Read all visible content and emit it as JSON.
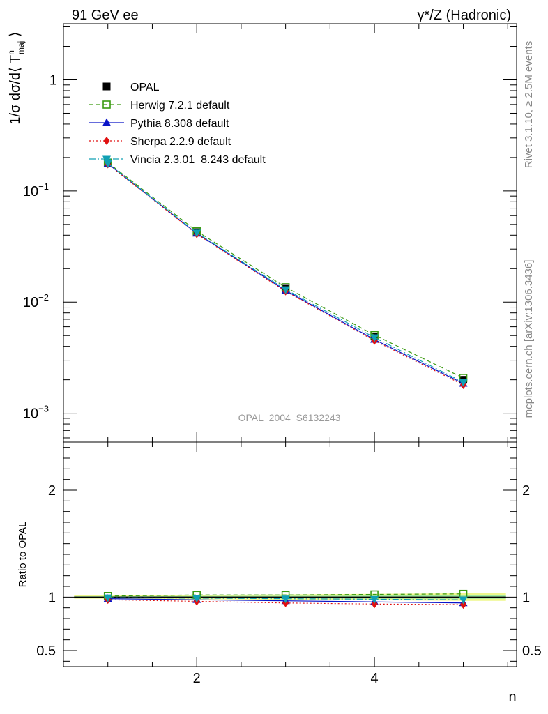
{
  "header": {
    "left_label": "91 GeV ee",
    "right_label": "γ*/Z (Hadronic)"
  },
  "side_text": {
    "rivet": "Rivet 3.1.10, ≥ 2.5M events",
    "mcplots": "mcplots.cern.ch [arXiv:1306.3436]"
  },
  "watermark": "OPAL_2004_S6132243",
  "main_ylabel": "1/σ dσ/d⟨ T^n_maj ⟩",
  "ratio_ylabel": "Ratio to OPAL",
  "xlabel": "n",
  "colors": {
    "OPAL": "#000000",
    "Herwig": "#3a9a10",
    "Pythia": "#0a14c8",
    "Sherpa": "#e01010",
    "Vincia": "#10a0b4",
    "band_outer": "#eef78c",
    "band_inner": "#9fe6a0"
  },
  "chart_data": [
    {
      "type": "line",
      "panel": "main",
      "yscale": "log",
      "xlim": [
        0.5,
        5.6
      ],
      "ylim": [
        0.00055,
        3.2
      ],
      "x_ticks": [
        2,
        4
      ],
      "y_ticks": [
        "10^-3",
        "10^-2",
        "10^-1",
        "1"
      ],
      "x": [
        1,
        2,
        3,
        4,
        5
      ],
      "series": [
        {
          "name": "OPAL",
          "marker": "filled-square",
          "values": [
            0.178,
            0.0425,
            0.0132,
            0.0049,
            0.002
          ]
        },
        {
          "name": "Herwig 7.2.1 default",
          "marker": "open-square",
          "line": "dashed",
          "values": [
            0.18,
            0.0435,
            0.0136,
            0.00505,
            0.00208
          ]
        },
        {
          "name": "Pythia 8.308 default",
          "marker": "triangle-up",
          "line": "solid",
          "values": [
            0.176,
            0.0415,
            0.0127,
            0.0046,
            0.00185
          ]
        },
        {
          "name": "Sherpa 2.2.9 default",
          "marker": "diamond",
          "line": "dotted",
          "values": [
            0.174,
            0.041,
            0.0125,
            0.0045,
            0.0018
          ]
        },
        {
          "name": "Vincia 2.3.01_8.243 default",
          "marker": "triangle-down",
          "line": "dashdot",
          "values": [
            0.177,
            0.042,
            0.013,
            0.0048,
            0.0019
          ]
        }
      ],
      "legend_position": "top-left"
    },
    {
      "type": "line",
      "panel": "ratio",
      "ylabel": "Ratio to OPAL",
      "xlabel": "n",
      "xlim": [
        0.5,
        5.6
      ],
      "ylim": [
        0.35,
        2.45
      ],
      "y_ticks": [
        0.5,
        1,
        2
      ],
      "x_ticks": [
        2,
        4
      ],
      "x": [
        1,
        2,
        3,
        4,
        5
      ],
      "band_outer": [
        0.015,
        0.02,
        0.025,
        0.03,
        0.035
      ],
      "band_inner": [
        0.008,
        0.01,
        0.012,
        0.014,
        0.016
      ],
      "series": [
        {
          "name": "Herwig 7.2.1 default",
          "values": [
            1.01,
            1.02,
            1.02,
            1.025,
            1.03
          ]
        },
        {
          "name": "Pythia 8.308 default",
          "values": [
            0.985,
            0.975,
            0.965,
            0.955,
            0.945
          ]
        },
        {
          "name": "Sherpa 2.2.9 default",
          "values": [
            0.975,
            0.96,
            0.945,
            0.935,
            0.93
          ]
        },
        {
          "name": "Vincia 2.3.01_8.243 default",
          "values": [
            0.995,
            0.99,
            0.985,
            0.98,
            0.975
          ]
        }
      ]
    }
  ]
}
